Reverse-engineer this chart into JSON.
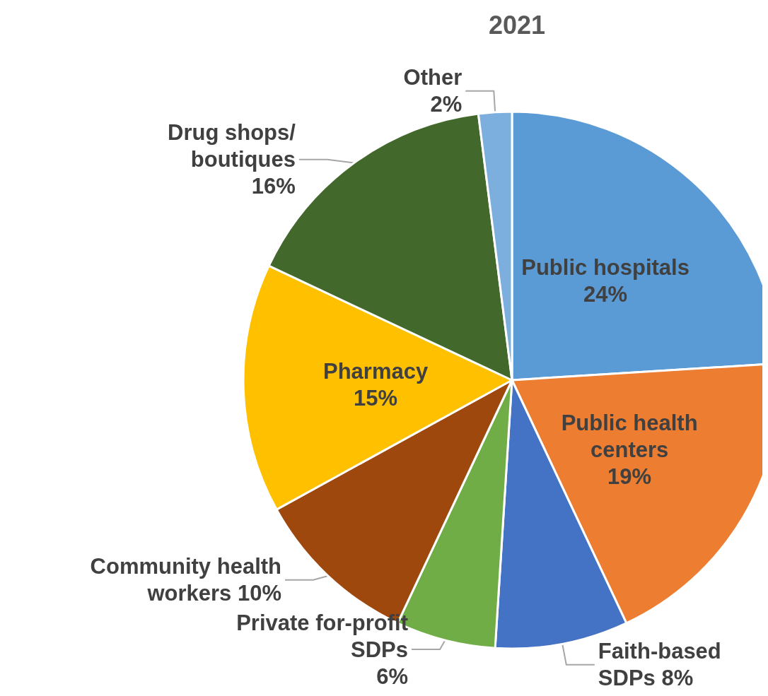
{
  "chart_data": {
    "type": "pie",
    "title": "2021",
    "categories": [
      "Public hospitals",
      "Public health\ncenters",
      "Faith-based\nSDPs",
      "Private for-profit\nSDPs",
      "Community health\nworkers",
      "Pharmacy",
      "Drug shops/\nboutiques",
      "Other"
    ],
    "values": [
      24,
      19,
      8,
      6,
      10,
      15,
      16,
      2
    ],
    "colors": [
      "#5b9bd5",
      "#ed7d31",
      "#4472c4",
      "#70ad47",
      "#9e480e",
      "#ffc000",
      "#43682b",
      "#7cafdd"
    ],
    "value_labels": [
      "24%",
      "19%",
      "8%",
      "6%",
      "10%",
      "15%",
      "16%",
      "2%"
    ],
    "legend": false
  }
}
